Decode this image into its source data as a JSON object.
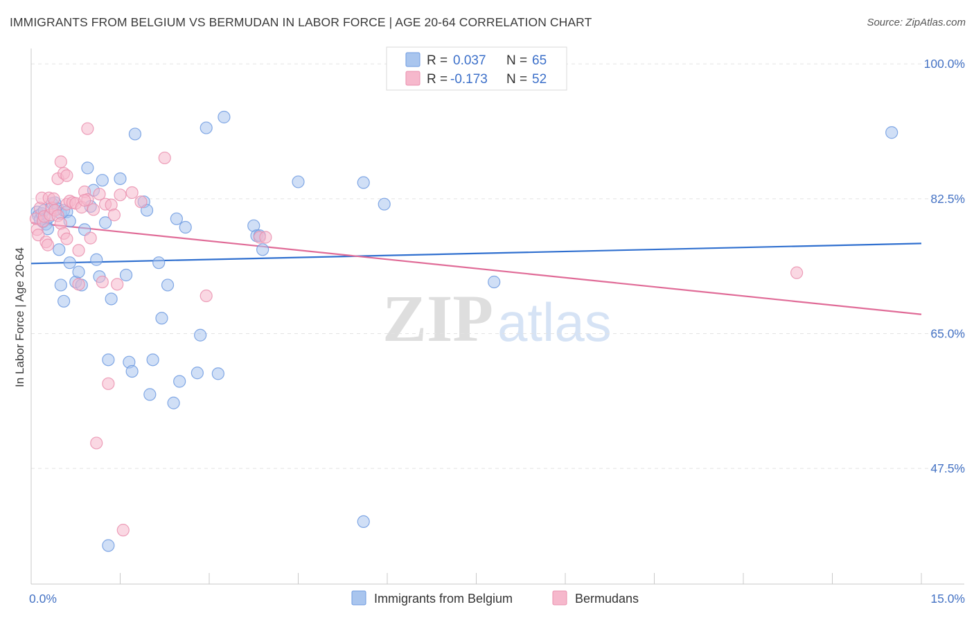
{
  "title": "IMMIGRANTS FROM BELGIUM VS BERMUDAN IN LABOR FORCE | AGE 20-64 CORRELATION CHART",
  "source": "Source: ZipAtlas.com",
  "watermark": {
    "zip": "ZIP",
    "atlas": "atlas"
  },
  "colors": {
    "blue_fill": "#a9c5ee",
    "blue_stroke": "#6d9ae0",
    "blue_line": "#2f6fcf",
    "pink_fill": "#f6b8cc",
    "pink_stroke": "#ea8fae",
    "pink_line": "#e06b97",
    "tick_label": "#4472c4",
    "grid": "#e3e3e3"
  },
  "legend": {
    "rows": [
      {
        "r_label": "R =",
        "r_value": "0.037",
        "n_label": "N =",
        "n_value": "65"
      },
      {
        "r_label": "R =",
        "r_value": "-0.173",
        "n_label": "N =",
        "n_value": "52"
      }
    ]
  },
  "chart_data": {
    "type": "scatter",
    "ylabel": "In Labor Force | Age 20-64",
    "xlim": [
      0,
      15
    ],
    "ylim": [
      32.5,
      102
    ],
    "x_tick_labels": [
      {
        "value": 0,
        "label": "0.0%"
      },
      {
        "value": 15,
        "label": "15.0%"
      }
    ],
    "y_tick_labels": [
      {
        "value": 100,
        "label": "100.0%"
      },
      {
        "value": 82.5,
        "label": "82.5%"
      },
      {
        "value": 65,
        "label": "65.0%"
      },
      {
        "value": 47.5,
        "label": "47.5%"
      }
    ],
    "series": [
      {
        "name": "Immigrants from Belgium",
        "trend": {
          "x": [
            0,
            15
          ],
          "y": [
            74.1,
            76.7
          ]
        },
        "points": [
          [
            0.1,
            80.8
          ],
          [
            0.12,
            80.3
          ],
          [
            0.15,
            79.8
          ],
          [
            0.18,
            80.6
          ],
          [
            0.2,
            79.5
          ],
          [
            0.22,
            81.0
          ],
          [
            0.25,
            79.2
          ],
          [
            0.28,
            78.6
          ],
          [
            0.3,
            80.1
          ],
          [
            0.35,
            81.9
          ],
          [
            0.4,
            82.0
          ],
          [
            0.45,
            81.2
          ],
          [
            0.5,
            80.6
          ],
          [
            0.55,
            81.0
          ],
          [
            0.6,
            80.8
          ],
          [
            0.65,
            79.6
          ],
          [
            0.47,
            75.9
          ],
          [
            0.5,
            71.3
          ],
          [
            0.55,
            69.2
          ],
          [
            0.65,
            74.2
          ],
          [
            0.75,
            71.7
          ],
          [
            0.8,
            73.0
          ],
          [
            0.85,
            71.3
          ],
          [
            0.9,
            78.5
          ],
          [
            0.95,
            86.5
          ],
          [
            1.0,
            81.5
          ],
          [
            1.05,
            83.6
          ],
          [
            1.1,
            74.6
          ],
          [
            1.15,
            72.4
          ],
          [
            1.2,
            84.9
          ],
          [
            1.25,
            79.4
          ],
          [
            1.3,
            61.6
          ],
          [
            1.35,
            69.5
          ],
          [
            1.5,
            85.1
          ],
          [
            1.6,
            72.6
          ],
          [
            1.65,
            61.3
          ],
          [
            1.7,
            60.1
          ],
          [
            1.75,
            90.9
          ],
          [
            1.9,
            82.1
          ],
          [
            1.95,
            81.0
          ],
          [
            2.0,
            57.1
          ],
          [
            2.05,
            61.6
          ],
          [
            2.15,
            74.2
          ],
          [
            2.2,
            67.0
          ],
          [
            2.3,
            71.3
          ],
          [
            2.4,
            56.0
          ],
          [
            2.45,
            79.9
          ],
          [
            2.5,
            58.8
          ],
          [
            2.6,
            78.8
          ],
          [
            2.8,
            59.9
          ],
          [
            2.85,
            64.8
          ],
          [
            2.95,
            91.7
          ],
          [
            3.15,
            59.8
          ],
          [
            3.25,
            93.1
          ],
          [
            3.75,
            79.0
          ],
          [
            3.8,
            77.7
          ],
          [
            3.85,
            77.7
          ],
          [
            3.9,
            75.9
          ],
          [
            4.5,
            84.7
          ],
          [
            5.6,
            84.6
          ],
          [
            5.6,
            40.6
          ],
          [
            5.95,
            81.8
          ],
          [
            7.8,
            71.7
          ],
          [
            14.5,
            91.1
          ],
          [
            1.3,
            37.5
          ]
        ]
      },
      {
        "name": "Bermudans",
        "trend": {
          "x": [
            0,
            15
          ],
          "y": [
            79.4,
            67.5
          ]
        },
        "points": [
          [
            0.08,
            79.9
          ],
          [
            0.1,
            78.5
          ],
          [
            0.12,
            77.8
          ],
          [
            0.15,
            81.3
          ],
          [
            0.18,
            82.6
          ],
          [
            0.2,
            79.6
          ],
          [
            0.22,
            80.2
          ],
          [
            0.25,
            76.9
          ],
          [
            0.28,
            76.5
          ],
          [
            0.3,
            82.6
          ],
          [
            0.32,
            80.4
          ],
          [
            0.35,
            81.3
          ],
          [
            0.38,
            82.5
          ],
          [
            0.4,
            81.0
          ],
          [
            0.45,
            80.3
          ],
          [
            0.5,
            79.3
          ],
          [
            0.45,
            85.1
          ],
          [
            0.5,
            87.3
          ],
          [
            0.55,
            78.0
          ],
          [
            0.6,
            77.3
          ],
          [
            0.55,
            85.8
          ],
          [
            0.6,
            85.5
          ],
          [
            0.6,
            81.8
          ],
          [
            0.65,
            82.2
          ],
          [
            0.7,
            82.0
          ],
          [
            0.75,
            81.9
          ],
          [
            0.8,
            75.8
          ],
          [
            0.8,
            71.4
          ],
          [
            0.85,
            81.4
          ],
          [
            0.9,
            83.4
          ],
          [
            0.95,
            82.4
          ],
          [
            0.95,
            91.6
          ],
          [
            1.0,
            77.4
          ],
          [
            1.05,
            81.1
          ],
          [
            1.1,
            50.8
          ],
          [
            1.15,
            83.1
          ],
          [
            1.2,
            71.7
          ],
          [
            1.25,
            81.8
          ],
          [
            1.3,
            58.5
          ],
          [
            1.35,
            81.7
          ],
          [
            1.4,
            80.4
          ],
          [
            1.45,
            71.4
          ],
          [
            1.55,
            39.5
          ],
          [
            1.7,
            83.3
          ],
          [
            1.85,
            82.1
          ],
          [
            2.25,
            87.8
          ],
          [
            2.95,
            69.9
          ],
          [
            3.85,
            77.5
          ],
          [
            3.95,
            77.5
          ],
          [
            12.9,
            72.9
          ],
          [
            0.9,
            82.3
          ],
          [
            1.5,
            83.0
          ]
        ]
      }
    ]
  }
}
